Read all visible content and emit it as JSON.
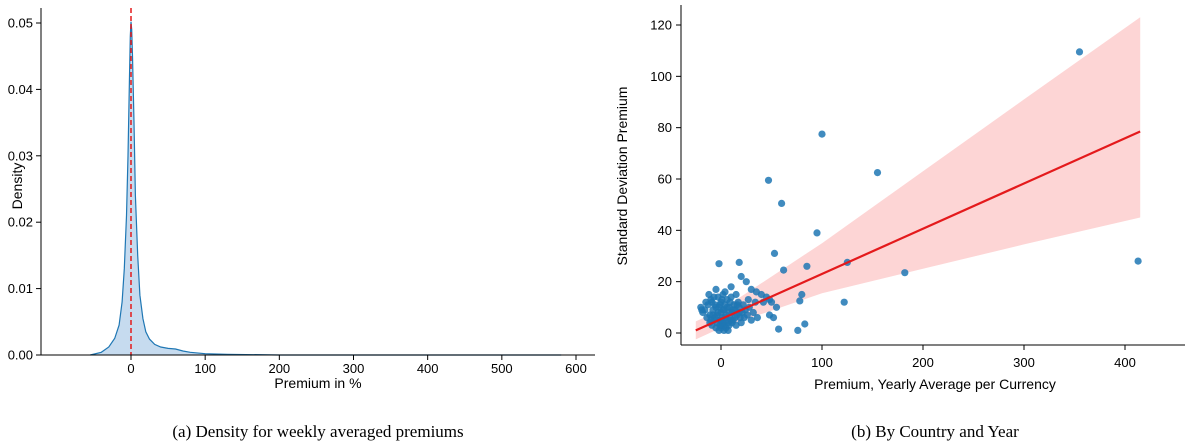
{
  "chart_data": [
    {
      "type": "area",
      "caption": "(a) Density for weekly averaged premiums",
      "xlabel": "Premium in %",
      "ylabel": "Density",
      "xlim": [
        -80,
        600
      ],
      "ylim": [
        0,
        0.052
      ],
      "xticks": [
        0,
        100,
        200,
        300,
        400,
        500,
        600
      ],
      "yticks": [
        0.0,
        0.01,
        0.02,
        0.03,
        0.04,
        0.05
      ],
      "ytick_labels": [
        "0.00",
        "0.01",
        "0.02",
        "0.03",
        "0.04",
        "0.05"
      ],
      "grid": false,
      "reference_line": {
        "x": 0,
        "style": "dashed",
        "color": "#e41a1c"
      },
      "fill_color": "#c6dbef",
      "line_color": "#1f77b4",
      "x": [
        -55,
        -40,
        -30,
        -22,
        -16,
        -12,
        -9,
        -6,
        -4,
        -2,
        -1,
        0,
        1,
        2,
        4,
        6,
        9,
        12,
        16,
        20,
        25,
        32,
        40,
        50,
        60,
        70,
        80,
        100,
        130,
        200,
        300,
        400,
        500,
        580
      ],
      "y": [
        0.0,
        0.0004,
        0.0012,
        0.0025,
        0.0045,
        0.008,
        0.013,
        0.021,
        0.03,
        0.042,
        0.048,
        0.0502,
        0.049,
        0.045,
        0.035,
        0.024,
        0.015,
        0.009,
        0.0055,
        0.0035,
        0.0024,
        0.0016,
        0.0012,
        0.001,
        0.0009,
        0.0006,
        0.0004,
        0.0002,
        0.0001,
        0.0,
        0.0,
        0.0,
        0.0,
        0.0
      ]
    },
    {
      "type": "scatter",
      "caption": "(b) By Country and Year",
      "xlabel": "Premium, Yearly Average per Currency",
      "ylabel": "Standard Deviation Premium",
      "xlim": [
        -40,
        420
      ],
      "ylim": [
        -5,
        128
      ],
      "xticks": [
        0,
        100,
        200,
        300,
        400
      ],
      "yticks": [
        0,
        20,
        40,
        60,
        80,
        100,
        120
      ],
      "grid": false,
      "point_color": "#1f77b4",
      "regression": {
        "x": [
          -25,
          415
        ],
        "y": [
          1.0,
          78.5
        ],
        "color": "#e41a1c"
      },
      "confidence_band": {
        "x": [
          -25,
          0,
          100,
          200,
          300,
          415
        ],
        "lower": [
          -2.5,
          2.0,
          15.5,
          25.0,
          34.5,
          45.0
        ],
        "upper": [
          4.5,
          9.0,
          35.0,
          63.0,
          91.0,
          123.0
        ],
        "color": "#fdd5d5"
      },
      "points": [
        [
          355,
          109.5
        ],
        [
          100,
          77.5
        ],
        [
          155,
          62.5
        ],
        [
          47,
          59.5
        ],
        [
          60,
          50.5
        ],
        [
          95,
          39
        ],
        [
          53,
          31
        ],
        [
          -2,
          27
        ],
        [
          18,
          27.5
        ],
        [
          20,
          22
        ],
        [
          25,
          20
        ],
        [
          62,
          24.5
        ],
        [
          85,
          26
        ],
        [
          125,
          27.5
        ],
        [
          182,
          23.5
        ],
        [
          413,
          28
        ],
        [
          10,
          18
        ],
        [
          15,
          15
        ],
        [
          -5,
          17
        ],
        [
          30,
          17
        ],
        [
          35,
          16
        ],
        [
          40,
          15
        ],
        [
          45,
          14
        ],
        [
          48,
          13
        ],
        [
          50,
          12
        ],
        [
          42,
          12
        ],
        [
          55,
          10
        ],
        [
          80,
          15
        ],
        [
          78,
          12.5
        ],
        [
          122,
          12
        ],
        [
          57,
          1.5
        ],
        [
          76,
          1
        ],
        [
          83,
          3.5
        ],
        [
          52,
          6
        ],
        [
          48,
          7
        ],
        [
          36,
          6
        ],
        [
          30,
          5
        ],
        [
          -20,
          10
        ],
        [
          -18,
          8
        ],
        [
          -15,
          12
        ],
        [
          -12,
          15
        ],
        [
          -10,
          13
        ],
        [
          -8,
          9
        ],
        [
          -6,
          11
        ],
        [
          -4,
          7
        ],
        [
          -3,
          14
        ],
        [
          -2,
          10
        ],
        [
          -1,
          5
        ],
        [
          0,
          8
        ],
        [
          0,
          12
        ],
        [
          1,
          6
        ],
        [
          2,
          9
        ],
        [
          2,
          15
        ],
        [
          3,
          3
        ],
        [
          4,
          11
        ],
        [
          5,
          7
        ],
        [
          6,
          13
        ],
        [
          7,
          4
        ],
        [
          8,
          10
        ],
        [
          9,
          6
        ],
        [
          10,
          14
        ],
        [
          11,
          8
        ],
        [
          12,
          5
        ],
        [
          13,
          11
        ],
        [
          14,
          9
        ],
        [
          15,
          3
        ],
        [
          16,
          7
        ],
        [
          17,
          12
        ],
        [
          18,
          10
        ],
        [
          19,
          6
        ],
        [
          20,
          4
        ],
        [
          21,
          8
        ],
        [
          22,
          11
        ],
        [
          24,
          9
        ],
        [
          26,
          7
        ],
        [
          28,
          10
        ],
        [
          32,
          8
        ],
        [
          34,
          12
        ],
        [
          -14,
          6
        ],
        [
          -11,
          4
        ],
        [
          -9,
          3
        ],
        [
          -7,
          5
        ],
        [
          -5,
          2
        ],
        [
          -4,
          4
        ],
        [
          -2,
          1
        ],
        [
          0,
          2
        ],
        [
          1,
          3
        ],
        [
          3,
          1
        ],
        [
          5,
          2
        ],
        [
          7,
          1
        ],
        [
          -16,
          9
        ],
        [
          -13,
          11
        ],
        [
          -11,
          7
        ],
        [
          -9,
          12
        ],
        [
          -7,
          14
        ],
        [
          -5,
          10
        ],
        [
          -3,
          8
        ],
        [
          -1,
          11
        ],
        [
          1,
          13
        ],
        [
          3,
          9
        ],
        [
          4,
          16
        ],
        [
          6,
          10
        ],
        [
          8,
          8
        ],
        [
          9,
          12
        ],
        [
          11,
          4
        ],
        [
          12,
          9
        ],
        [
          14,
          6
        ],
        [
          16,
          11
        ],
        [
          18,
          8
        ],
        [
          23,
          6
        ],
        [
          27,
          13
        ],
        [
          -1,
          3
        ],
        [
          0,
          5
        ],
        [
          2,
          4
        ],
        [
          4,
          6
        ],
        [
          6,
          5
        ],
        [
          8,
          3
        ],
        [
          10,
          5
        ],
        [
          -6,
          6
        ],
        [
          -8,
          7
        ],
        [
          -10,
          5
        ],
        [
          -19,
          9
        ]
      ]
    }
  ]
}
